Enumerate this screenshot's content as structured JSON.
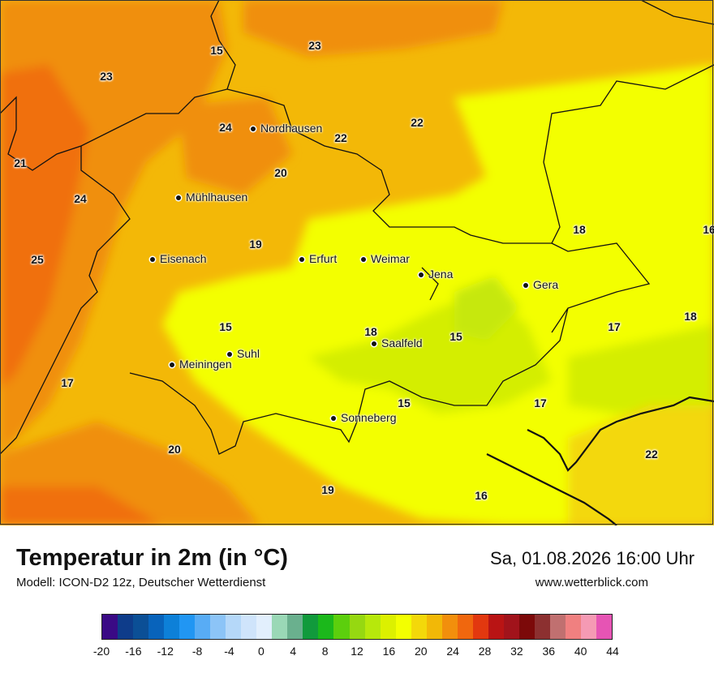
{
  "map": {
    "cities": [
      {
        "name": "Nordhausen"
      },
      {
        "name": "Mühlhausen"
      },
      {
        "name": "Eisenach"
      },
      {
        "name": "Erfurt"
      },
      {
        "name": "Weimar"
      },
      {
        "name": "Jena"
      },
      {
        "name": "Gera"
      },
      {
        "name": "Suhl"
      },
      {
        "name": "Meiningen"
      },
      {
        "name": "Saalfeld"
      },
      {
        "name": "Sonneberg"
      }
    ],
    "temperature_labels": [
      "23",
      "15",
      "23",
      "24",
      "22",
      "22",
      "21",
      "20",
      "24",
      "18",
      "16",
      "19",
      "25",
      "15",
      "18",
      "15",
      "17",
      "18",
      "17",
      "15",
      "17",
      "20",
      "22",
      "19",
      "16"
    ]
  },
  "title": "Temperatur in 2m (in °C)",
  "model": "Modell: ICON-D2 12z, Deutscher Wetterdienst",
  "datetime": "Sa, 01.08.2026 16:00 Uhr",
  "website": "www.wetterblick.com",
  "legend": {
    "colors": [
      "#3a0a85",
      "#0e3c8a",
      "#0b4f96",
      "#0863bb",
      "#0d80d8",
      "#2196f3",
      "#58acf5",
      "#8cc4f7",
      "#b5d8f9",
      "#cfe4fb",
      "#e2effd",
      "#9ad8b6",
      "#6ab08e",
      "#119a3c",
      "#1bb81b",
      "#5ccf0d",
      "#96d811",
      "#b7e80b",
      "#dcf000",
      "#f3ff00",
      "#f3d80a",
      "#f2b807",
      "#f28f0c",
      "#f0670e",
      "#e2380f",
      "#b91414",
      "#a1131b",
      "#7c0909",
      "#8c3030",
      "#c07070",
      "#f08080",
      "#f59ab4",
      "#e654b4"
    ],
    "ticks": [
      "-20",
      "-16",
      "-12",
      "-8",
      "-4",
      "0",
      "4",
      "8",
      "12",
      "16",
      "20",
      "24",
      "28",
      "32",
      "36",
      "40",
      "44"
    ]
  }
}
